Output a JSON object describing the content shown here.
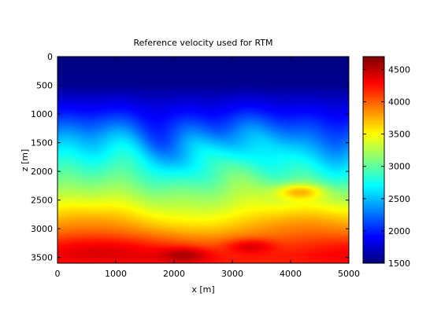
{
  "chart_data": {
    "type": "heatmap",
    "title": "Reference velocity used for RTM",
    "xlabel": "x [m]",
    "ylabel": "z [m]",
    "xlim": [
      0,
      5000
    ],
    "ylim": [
      0,
      3600
    ],
    "y_reversed": true,
    "xticks": [
      0,
      1000,
      2000,
      3000,
      4000,
      5000
    ],
    "yticks": [
      0,
      500,
      1000,
      1500,
      2000,
      2500,
      3000,
      3500
    ],
    "colormap": "jet",
    "clim": [
      1500,
      4700
    ],
    "colorbar_ticks": [
      1500,
      2000,
      2500,
      3000,
      3500,
      4000,
      4500
    ],
    "field_description_depth_profile_x_mean": {
      "z": [
        0,
        500,
        1000,
        1500,
        2000,
        2500,
        3000,
        3500
      ],
      "velocity": [
        1500,
        1550,
        1950,
        2450,
        2850,
        3300,
        3800,
        4200
      ]
    },
    "features": [
      {
        "x": 4150,
        "z": 2350,
        "velocity": 3700
      },
      {
        "x": 3300,
        "z": 3300,
        "velocity": 4400
      },
      {
        "x": 2200,
        "z": 3450,
        "velocity": 4500
      }
    ]
  }
}
